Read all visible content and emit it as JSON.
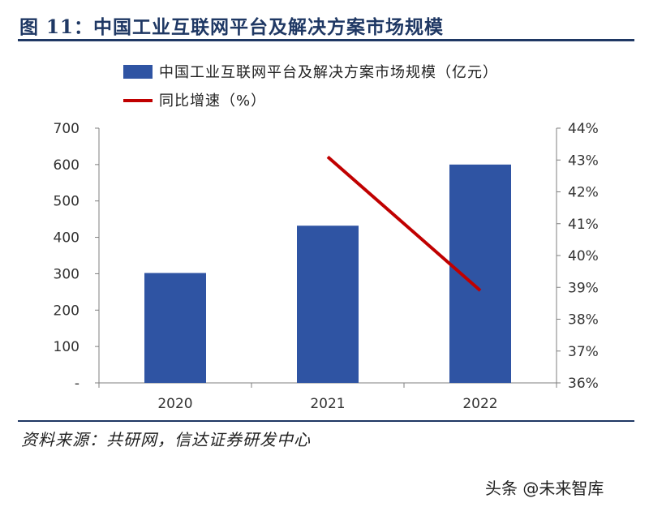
{
  "header": {
    "title": "图 11：中国工业互联网平台及解决方案市场规模"
  },
  "source": {
    "text": "资料来源：共研网，信达证券研发中心"
  },
  "watermark": {
    "text": "头条 @未来智库"
  },
  "colors": {
    "bar": "#2f54a3",
    "line": "#c00000",
    "title": "#1f3864",
    "axis": "#7f7f7f"
  },
  "chart_data": {
    "type": "bar+line",
    "title": "中国工业互联网平台及解决方案市场规模",
    "categories": [
      "2020",
      "2021",
      "2022"
    ],
    "series": [
      {
        "name": "中国工业互联网平台及解决方案市场规模（亿元）",
        "type": "bar",
        "axis": "left",
        "values": [
          302,
          432,
          600
        ]
      },
      {
        "name": "同比增速（%）",
        "type": "line",
        "axis": "right",
        "values": [
          null,
          43.1,
          38.9
        ]
      }
    ],
    "left_axis": {
      "ylim": [
        0,
        700
      ],
      "ticks": [
        "-",
        "100",
        "200",
        "300",
        "400",
        "500",
        "600",
        "700"
      ]
    },
    "right_axis": {
      "ylim": [
        36,
        44
      ],
      "ticks": [
        "36%",
        "37%",
        "38%",
        "39%",
        "40%",
        "41%",
        "42%",
        "43%",
        "44%"
      ]
    },
    "legend_position": "top"
  }
}
